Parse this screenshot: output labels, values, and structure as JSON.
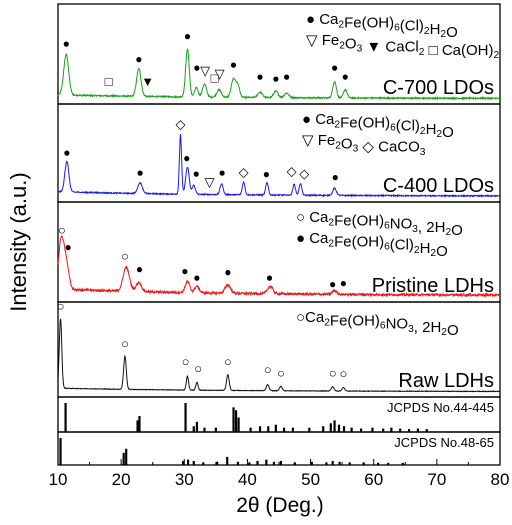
{
  "chart_data": {
    "type": "line",
    "title": "",
    "xlabel": "2θ (Deg.)",
    "ylabel": "Intensity (a.u.)",
    "xlim": [
      10,
      80
    ],
    "xticks": [
      "10",
      "20",
      "30",
      "40",
      "50",
      "60",
      "70",
      "80"
    ],
    "series": [
      {
        "name": "C-700 LDOs",
        "color": "#1aa01a",
        "baseline": 0.2,
        "noise": 0.035,
        "peaks": [
          [
            11.3,
            2.2,
            0.55
          ],
          [
            22.8,
            1.5,
            0.5
          ],
          [
            30.5,
            2.6,
            0.4
          ],
          [
            31.9,
            0.5,
            0.4
          ],
          [
            33.2,
            0.7,
            0.45
          ],
          [
            35.5,
            0.4,
            0.5
          ],
          [
            37.8,
            1.0,
            0.5
          ],
          [
            38.5,
            0.6,
            0.4
          ],
          [
            42.0,
            0.3,
            0.5
          ],
          [
            44.5,
            0.35,
            0.5
          ],
          [
            46.2,
            0.25,
            0.5
          ],
          [
            53.8,
            0.9,
            0.4
          ],
          [
            55.5,
            0.45,
            0.4
          ]
        ],
        "annotations": [
          {
            "x": 11.3,
            "symbol": "●",
            "y": 2.85
          },
          {
            "x": 22.8,
            "symbol": "●",
            "y": 2.0
          },
          {
            "x": 30.5,
            "symbol": "●",
            "y": 3.25
          },
          {
            "x": 32.0,
            "symbol": "●",
            "y": 1.55
          },
          {
            "x": 37.8,
            "symbol": "●",
            "y": 1.7
          },
          {
            "x": 42.0,
            "symbol": "●",
            "y": 1.05
          },
          {
            "x": 44.5,
            "symbol": "●",
            "y": 0.95
          },
          {
            "x": 46.2,
            "symbol": "●",
            "y": 1.05
          },
          {
            "x": 53.8,
            "symbol": "●",
            "y": 1.55
          },
          {
            "x": 55.5,
            "symbol": "●",
            "y": 1.05
          },
          {
            "x": 18.0,
            "symbol": "□",
            "y": 0.75
          },
          {
            "x": 24.2,
            "symbol": "▼",
            "y": 0.75
          },
          {
            "x": 33.3,
            "symbol": "▽",
            "y": 1.35
          },
          {
            "x": 34.8,
            "symbol": "□",
            "y": 0.95
          },
          {
            "x": 35.6,
            "symbol": "▽",
            "y": 1.2
          }
        ],
        "label": "C-700 LDOs",
        "legend": [
          "● Ca2Fe(OH)6(Cl)2H2O",
          "▽ Fe2O3 ▼ CaCl2 □ Ca(OH)2"
        ]
      },
      {
        "name": "C-400 LDOs",
        "color": "#1a1ae6",
        "baseline": 0.25,
        "noise": 0.03,
        "peaks": [
          [
            11.4,
            1.7,
            0.45
          ],
          [
            23.0,
            0.6,
            0.5
          ],
          [
            29.4,
            3.3,
            0.25
          ],
          [
            30.5,
            1.5,
            0.4
          ],
          [
            31.5,
            0.5,
            0.35
          ],
          [
            35.9,
            0.6,
            0.35
          ],
          [
            39.4,
            0.7,
            0.3
          ],
          [
            43.1,
            0.7,
            0.3
          ],
          [
            47.4,
            0.6,
            0.3
          ],
          [
            48.4,
            0.65,
            0.3
          ],
          [
            53.8,
            0.4,
            0.4
          ]
        ],
        "annotations": [
          {
            "x": 11.4,
            "symbol": "●",
            "y": 2.3
          },
          {
            "x": 23.0,
            "symbol": "●",
            "y": 1.2
          },
          {
            "x": 29.4,
            "symbol": "◇",
            "y": 3.85
          },
          {
            "x": 30.4,
            "symbol": "●",
            "y": 2.0
          },
          {
            "x": 31.9,
            "symbol": "●",
            "y": 1.15
          },
          {
            "x": 34.0,
            "symbol": "▽",
            "y": 0.65
          },
          {
            "x": 36.0,
            "symbol": "●",
            "y": 1.2
          },
          {
            "x": 39.4,
            "symbol": "◇",
            "y": 1.2
          },
          {
            "x": 43.0,
            "symbol": "●",
            "y": 1.1
          },
          {
            "x": 47.0,
            "symbol": "◇",
            "y": 1.25
          },
          {
            "x": 49.0,
            "symbol": "◇",
            "y": 1.1
          },
          {
            "x": 53.9,
            "symbol": "●",
            "y": 0.95
          }
        ],
        "label": "C-400 LDOs",
        "legend": [
          "● Ca2Fe(OH)6(Cl)2H2O",
          "▽ Fe2O3 ◇ CaCO3"
        ]
      },
      {
        "name": "Pristine LDHs",
        "color": "#e61a1a",
        "baseline": 0.35,
        "noise": 0.06,
        "peaks": [
          [
            10.5,
            2.6,
            0.6
          ],
          [
            11.3,
            1.4,
            0.6
          ],
          [
            20.8,
            1.3,
            0.7
          ],
          [
            22.8,
            0.5,
            0.6
          ],
          [
            30.5,
            0.6,
            0.5
          ],
          [
            32.0,
            0.35,
            0.5
          ],
          [
            36.9,
            0.45,
            0.6
          ],
          [
            43.6,
            0.4,
            0.6
          ],
          [
            53.8,
            0.2,
            0.5
          ]
        ],
        "annotations": [
          {
            "x": 10.6,
            "symbol": "○",
            "y": 3.45
          },
          {
            "x": 11.6,
            "symbol": "●",
            "y": 2.55
          },
          {
            "x": 20.6,
            "symbol": "○",
            "y": 2.05
          },
          {
            "x": 22.9,
            "symbol": "●",
            "y": 1.35
          },
          {
            "x": 30.1,
            "symbol": "●",
            "y": 1.25
          },
          {
            "x": 32.0,
            "symbol": "●",
            "y": 0.9
          },
          {
            "x": 36.9,
            "symbol": "●",
            "y": 1.2
          },
          {
            "x": 43.5,
            "symbol": "●",
            "y": 0.9
          },
          {
            "x": 53.5,
            "symbol": "●",
            "y": 0.55
          },
          {
            "x": 55.2,
            "symbol": "●",
            "y": 0.6
          }
        ],
        "label": "Pristine LDHs",
        "legend": [
          "○ Ca2Fe(OH)6NO3, 2H2O",
          "● Ca2Fe(OH)6(Cl)2H2O"
        ]
      },
      {
        "name": "Raw LDHs",
        "color": "#111111",
        "baseline": 0.2,
        "noise": 0.015,
        "peaks": [
          [
            10.4,
            4.0,
            0.28
          ],
          [
            20.6,
            1.9,
            0.3
          ],
          [
            30.5,
            0.8,
            0.25
          ],
          [
            32.0,
            0.45,
            0.25
          ],
          [
            36.9,
            0.9,
            0.3
          ],
          [
            43.2,
            0.35,
            0.3
          ],
          [
            45.3,
            0.25,
            0.3
          ],
          [
            53.5,
            0.25,
            0.3
          ],
          [
            55.2,
            0.2,
            0.3
          ]
        ],
        "annotations": [
          {
            "x": 10.4,
            "symbol": "○",
            "y": 4.75
          },
          {
            "x": 20.6,
            "symbol": "○",
            "y": 2.6
          },
          {
            "x": 30.2,
            "symbol": "○",
            "y": 1.55
          },
          {
            "x": 32.2,
            "symbol": "○",
            "y": 1.15
          },
          {
            "x": 36.9,
            "symbol": "○",
            "y": 1.55
          },
          {
            "x": 43.2,
            "symbol": "○",
            "y": 1.1
          },
          {
            "x": 45.3,
            "symbol": "○",
            "y": 0.9
          },
          {
            "x": 53.5,
            "symbol": "○",
            "y": 0.9
          },
          {
            "x": 55.2,
            "symbol": "○",
            "y": 0.85
          }
        ],
        "label": "Raw LDHs",
        "legend": [
          "○Ca2Fe(OH)6NO3, 2H2O"
        ]
      }
    ],
    "references": [
      {
        "name": "JCPDS No.44-445",
        "lines": [
          [
            11.2,
            1.0
          ],
          [
            22.6,
            0.4
          ],
          [
            22.9,
            0.55
          ],
          [
            30.2,
            1.0
          ],
          [
            31.5,
            0.2
          ],
          [
            32.0,
            0.35
          ],
          [
            33.2,
            0.15
          ],
          [
            35.0,
            0.15
          ],
          [
            37.8,
            0.85
          ],
          [
            38.2,
            0.75
          ],
          [
            38.6,
            0.5
          ],
          [
            40.5,
            0.15
          ],
          [
            42.0,
            0.2
          ],
          [
            43.3,
            0.2
          ],
          [
            44.5,
            0.25
          ],
          [
            45.8,
            0.15
          ],
          [
            47.2,
            0.15
          ],
          [
            49.8,
            0.15
          ],
          [
            52.0,
            0.2
          ],
          [
            53.2,
            0.3
          ],
          [
            53.8,
            0.4
          ],
          [
            54.5,
            0.25
          ],
          [
            55.3,
            0.2
          ],
          [
            56.5,
            0.15
          ],
          [
            58.0,
            0.12
          ],
          [
            59.8,
            0.15
          ],
          [
            61.5,
            0.12
          ],
          [
            62.8,
            0.15
          ],
          [
            64.2,
            0.12
          ],
          [
            65.6,
            0.1
          ],
          [
            67.0,
            0.12
          ],
          [
            68.4,
            0.1
          ]
        ]
      },
      {
        "name": "JCPDS No.48-65",
        "lines": [
          [
            10.4,
            1.0
          ],
          [
            20.4,
            0.45
          ],
          [
            20.8,
            0.6
          ],
          [
            29.8,
            0.15
          ],
          [
            30.6,
            0.2
          ],
          [
            31.5,
            0.15
          ],
          [
            33.0,
            0.1
          ],
          [
            35.2,
            0.12
          ],
          [
            36.8,
            0.3
          ],
          [
            38.5,
            0.12
          ],
          [
            40.3,
            0.1
          ],
          [
            41.6,
            0.15
          ],
          [
            43.0,
            0.2
          ],
          [
            44.2,
            0.12
          ],
          [
            45.3,
            0.15
          ],
          [
            47.5,
            0.1
          ],
          [
            50.2,
            0.12
          ],
          [
            52.5,
            0.1
          ],
          [
            53.5,
            0.15
          ],
          [
            54.6,
            0.12
          ],
          [
            56.2,
            0.1
          ],
          [
            58.4,
            0.1
          ],
          [
            60.7,
            0.08
          ],
          [
            62.3,
            0.08
          ],
          [
            64.6,
            0.08
          ]
        ]
      }
    ],
    "grid": false,
    "legend_position": "top-right"
  }
}
